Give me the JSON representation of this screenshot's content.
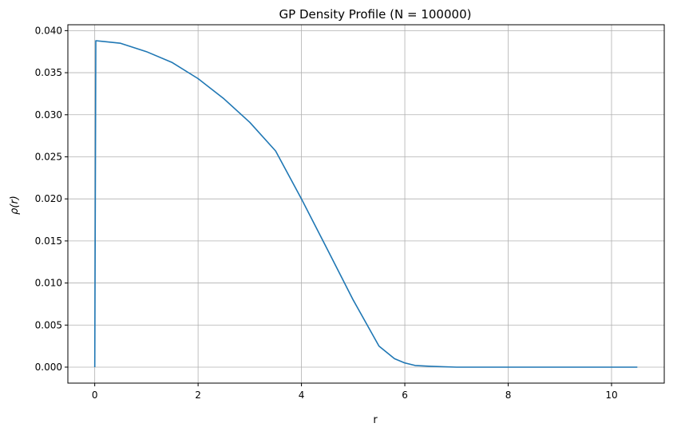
{
  "chart_data": {
    "type": "line",
    "title": "GP Density Profile (N = 100000)",
    "xlabel": "r",
    "ylabel": "ρ(r)",
    "xlim": [
      -0.52,
      11.02
    ],
    "ylim": [
      -0.0019,
      0.0407
    ],
    "xticks": [
      0,
      2,
      4,
      6,
      8,
      10
    ],
    "xtick_labels": [
      "0",
      "2",
      "4",
      "6",
      "8",
      "10"
    ],
    "yticks": [
      0.0,
      0.005,
      0.01,
      0.015,
      0.02,
      0.025,
      0.03,
      0.035,
      0.04
    ],
    "ytick_labels": [
      "0.000",
      "0.005",
      "0.010",
      "0.015",
      "0.020",
      "0.025",
      "0.030",
      "0.035",
      "0.040"
    ],
    "grid": true,
    "line_color": "#1f77b4",
    "series": [
      {
        "x": [
          0,
          0.02,
          0.5,
          1.0,
          1.5,
          2.0,
          2.5,
          3.0,
          3.5,
          4.0,
          4.5,
          5.0,
          5.5,
          5.8,
          6.0,
          6.2,
          6.5,
          7.0,
          8.0,
          9.0,
          10.0,
          10.5
        ],
        "y": [
          0.0,
          0.0388,
          0.0385,
          0.0375,
          0.0362,
          0.0343,
          0.0319,
          0.0291,
          0.0257,
          0.02,
          0.014,
          0.008,
          0.0025,
          0.001,
          0.0005,
          0.0002,
          0.0001,
          0.0,
          0.0,
          0.0,
          0.0,
          0.0
        ]
      }
    ]
  }
}
